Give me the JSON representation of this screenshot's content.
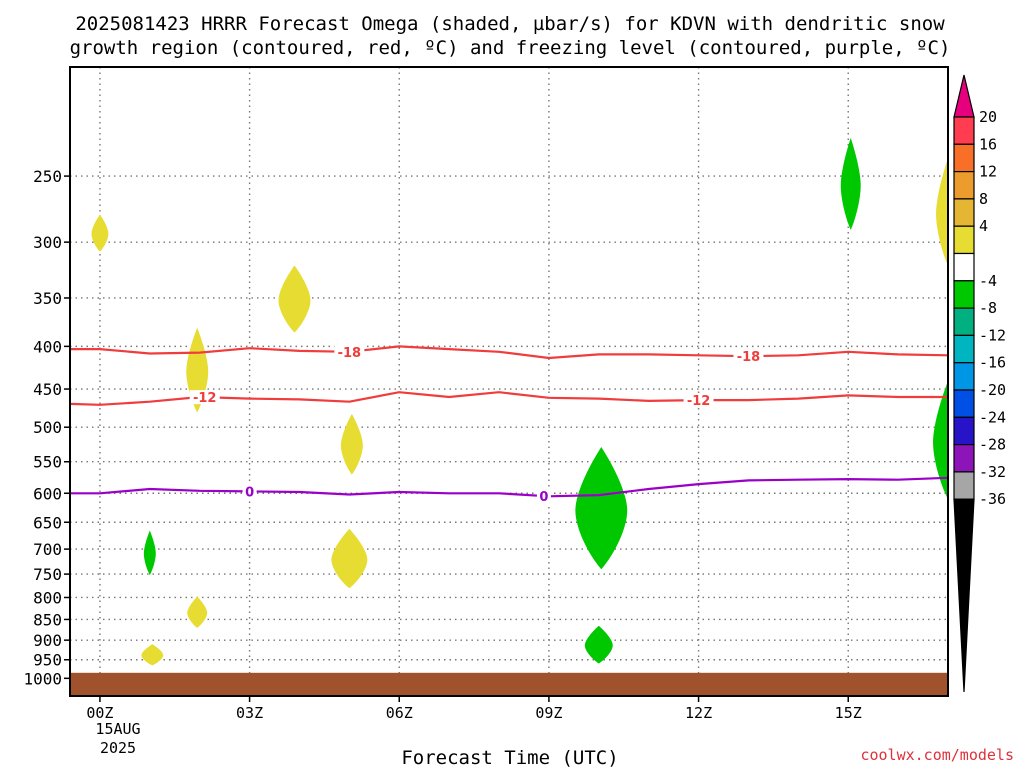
{
  "title_line1": "2025081423 HRRR Forecast Omega (shaded, µbar/s) for KDVN with dendritic snow",
  "title_line2": "growth region (contoured, red, ºC) and freezing level (contoured, purple, ºC)",
  "credit": "coolwx.com/models",
  "colors": {
    "credit": "#e0303a",
    "ground": "#a0522d",
    "dgz_contour": "#f03c3c",
    "freezing_contour": "#9a00c8",
    "omega_positive": "#e6dc32",
    "omega_negative": "#00c800"
  },
  "chart_data": {
    "type": "area",
    "title": "2025081423 HRRR Forecast Omega (shaded, µbar/s) for KDVN with dendritic snow growth region (contoured, red, ºC) and freezing level (contoured, purple, ºC)",
    "xlabel": "Forecast Time (UTC)",
    "ylabel": "",
    "y_scale": "log-pressure (reversed)",
    "xlim": [
      -0.6,
      17
    ],
    "ylim": [
      1050,
      185
    ],
    "grid": true,
    "x_ticks": [
      {
        "x": 0,
        "label": "00Z"
      },
      {
        "x": 3,
        "label": "03Z"
      },
      {
        "x": 6,
        "label": "06Z"
      },
      {
        "x": 9,
        "label": "09Z"
      },
      {
        "x": 12,
        "label": "12Z"
      },
      {
        "x": 15,
        "label": "15Z"
      }
    ],
    "x_date_lines": [
      "15AUG",
      "2025"
    ],
    "y_ticks": [
      250,
      300,
      350,
      400,
      450,
      500,
      550,
      600,
      650,
      700,
      750,
      800,
      850,
      900,
      950,
      1000
    ],
    "ground_pressure": 985,
    "contours": [
      {
        "name": "-18",
        "color": "#f03c3c",
        "label_positions": [
          5,
          13
        ],
        "points": [
          [
            -1,
            403
          ],
          [
            0,
            403
          ],
          [
            1,
            408
          ],
          [
            2,
            407
          ],
          [
            3,
            402
          ],
          [
            4,
            405
          ],
          [
            5,
            406
          ],
          [
            6,
            400
          ],
          [
            7,
            403
          ],
          [
            8,
            406
          ],
          [
            9,
            413
          ],
          [
            10,
            409
          ],
          [
            11,
            409
          ],
          [
            12,
            410
          ],
          [
            13,
            411
          ],
          [
            14,
            410
          ],
          [
            15,
            406
          ],
          [
            16,
            409
          ],
          [
            17,
            410
          ]
        ]
      },
      {
        "name": "-12",
        "color": "#f03c3c",
        "label_positions": [
          2.1,
          12
        ],
        "points": [
          [
            -1,
            468
          ],
          [
            0,
            470
          ],
          [
            1,
            466
          ],
          [
            2,
            460
          ],
          [
            3,
            462
          ],
          [
            4,
            463
          ],
          [
            5,
            466
          ],
          [
            6,
            454
          ],
          [
            7,
            460
          ],
          [
            8,
            454
          ],
          [
            9,
            461
          ],
          [
            10,
            462
          ],
          [
            11,
            465
          ],
          [
            12,
            464
          ],
          [
            13,
            464
          ],
          [
            14,
            462
          ],
          [
            15,
            458
          ],
          [
            16,
            460
          ],
          [
            17,
            460
          ]
        ]
      },
      {
        "name": "0",
        "color": "#9a00c8",
        "label_positions": [
          3,
          8.9
        ],
        "points": [
          [
            -1,
            600
          ],
          [
            0,
            600
          ],
          [
            1,
            593
          ],
          [
            2,
            596
          ],
          [
            3,
            597
          ],
          [
            4,
            598
          ],
          [
            5,
            602
          ],
          [
            6,
            598
          ],
          [
            7,
            600
          ],
          [
            8,
            600
          ],
          [
            9,
            605
          ],
          [
            10,
            603
          ],
          [
            11,
            593
          ],
          [
            12,
            585
          ],
          [
            13,
            579
          ],
          [
            14,
            578
          ],
          [
            15,
            577
          ],
          [
            16,
            578
          ],
          [
            17,
            575
          ]
        ]
      }
    ],
    "omega_blobs": [
      {
        "sign": "positive",
        "color": "#e6dc32",
        "x": 0.0,
        "p_top": 278,
        "p_bot": 308,
        "half_width": 0.17
      },
      {
        "sign": "positive",
        "color": "#e6dc32",
        "x": 3.9,
        "p_top": 320,
        "p_bot": 385,
        "half_width": 0.32
      },
      {
        "sign": "positive",
        "color": "#e6dc32",
        "x": 1.95,
        "p_top": 380,
        "p_bot": 480,
        "half_width": 0.22
      },
      {
        "sign": "positive",
        "color": "#e6dc32",
        "x": 5.05,
        "p_top": 482,
        "p_bot": 570,
        "half_width": 0.22
      },
      {
        "sign": "positive",
        "color": "#e6dc32",
        "x": 5.0,
        "p_top": 662,
        "p_bot": 780,
        "half_width": 0.36
      },
      {
        "sign": "positive",
        "color": "#e6dc32",
        "x": 1.95,
        "p_top": 798,
        "p_bot": 870,
        "half_width": 0.2
      },
      {
        "sign": "positive",
        "color": "#e6dc32",
        "x": 1.05,
        "p_top": 910,
        "p_bot": 965,
        "half_width": 0.22
      },
      {
        "sign": "positive",
        "color": "#e6dc32",
        "x": 17.0,
        "p_top": 238,
        "p_bot": 320,
        "half_width": 0.24
      },
      {
        "sign": "negative",
        "color": "#00c800",
        "x": 1.0,
        "p_top": 665,
        "p_bot": 752,
        "half_width": 0.12
      },
      {
        "sign": "negative",
        "color": "#00c800",
        "x": 10.05,
        "p_top": 528,
        "p_bot": 740,
        "half_width": 0.52
      },
      {
        "sign": "negative",
        "color": "#00c800",
        "x": 10.0,
        "p_top": 865,
        "p_bot": 960,
        "half_width": 0.28
      },
      {
        "sign": "negative",
        "color": "#00c800",
        "x": 15.05,
        "p_top": 225,
        "p_bot": 290,
        "half_width": 0.2
      },
      {
        "sign": "negative",
        "color": "#00c800",
        "x": 17.0,
        "p_top": 440,
        "p_bot": 610,
        "half_width": 0.3
      }
    ],
    "colorbar": {
      "labels": [
        "20",
        "16",
        "12",
        "8",
        "4",
        "-4",
        "-8",
        "-12",
        "-16",
        "-20",
        "-24",
        "-28",
        "-32",
        "-36"
      ],
      "colors": [
        "#ff3c50",
        "#f87028",
        "#ec9c2c",
        "#e4b634",
        "#e6dc32",
        "#ffffff",
        "#00c800",
        "#00b080",
        "#00b4c0",
        "#0096e6",
        "#0050e6",
        "#2814c8",
        "#8c14b8",
        "#a6a6a6"
      ],
      "top_arrow_color": "#e6007e",
      "bottom_arrow_color": "#000000"
    }
  }
}
